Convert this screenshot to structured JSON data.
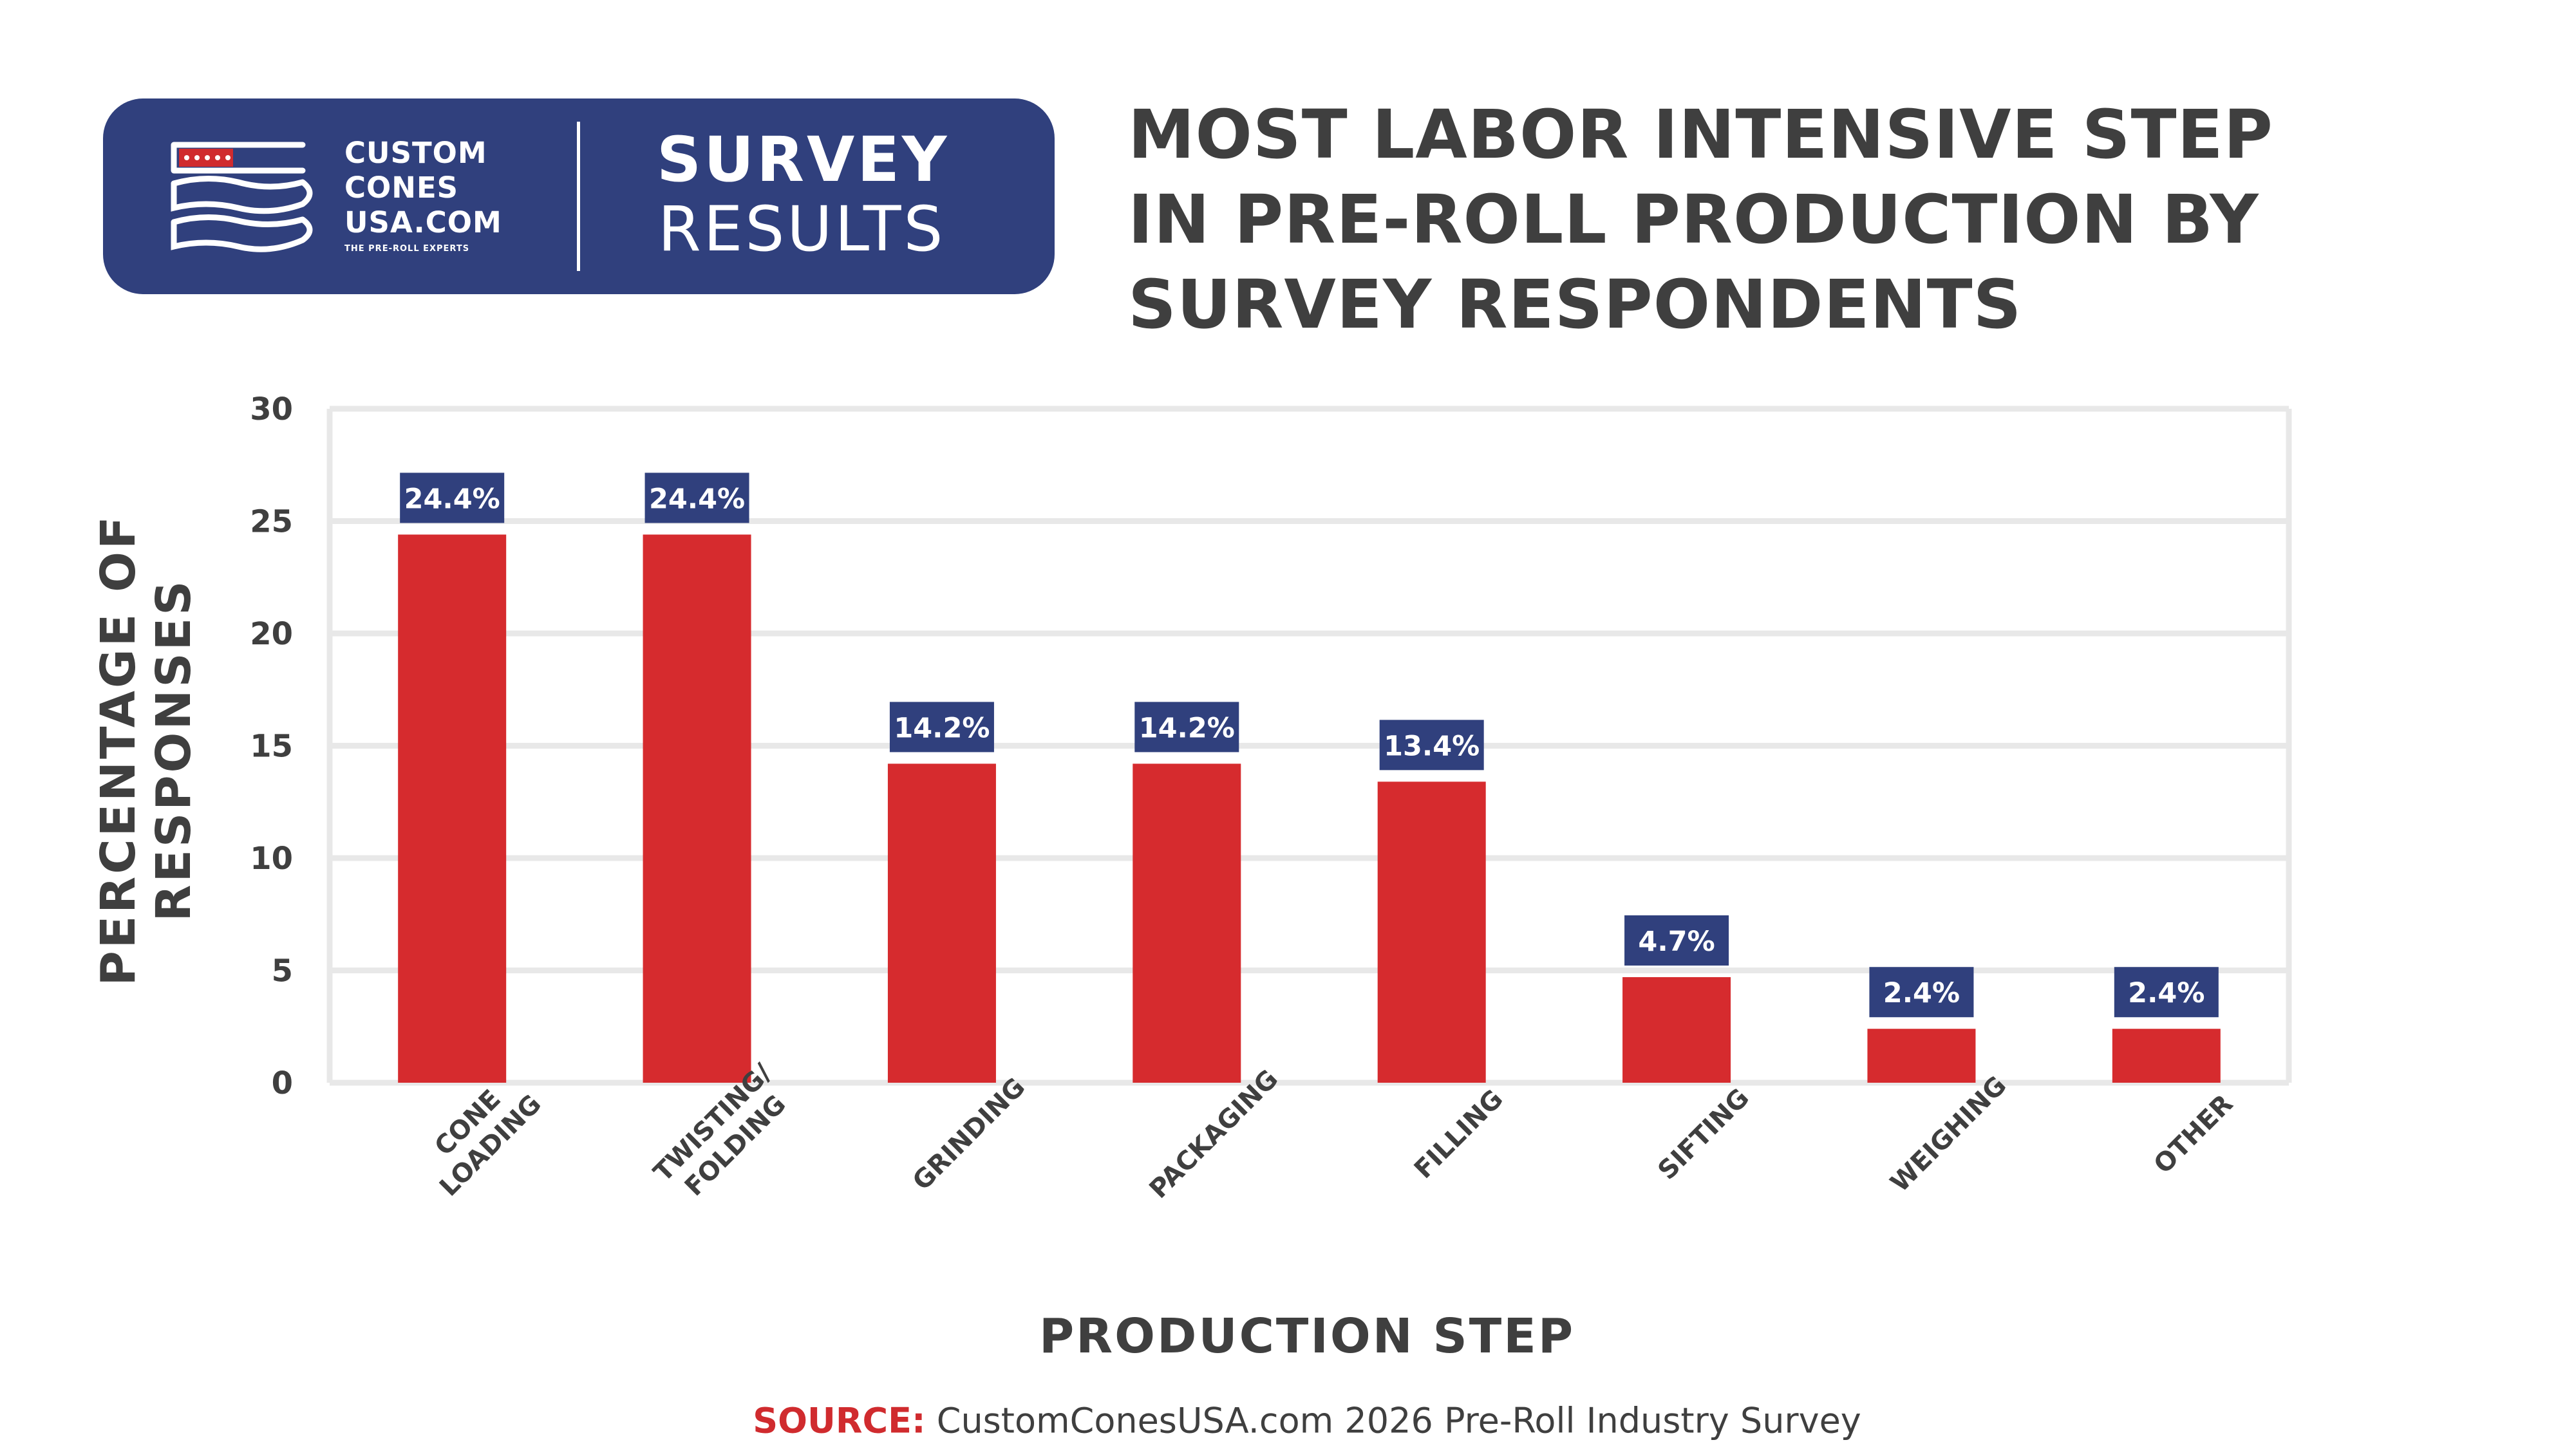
{
  "brand": {
    "line1": "CUSTOM",
    "line2": "CONES",
    "line3": "USA.COM",
    "tagline": "THE PRE-ROLL EXPERTS",
    "banner_heading": "SURVEY",
    "banner_subheading": "RESULTS"
  },
  "colors": {
    "navy": "#30407d",
    "bar_red": "#d62b2e",
    "text_dark": "#3f3f3f",
    "grid": "#e8e8e8"
  },
  "chart_data": {
    "type": "bar",
    "title": "MOST LABOR INTENSIVE  STEP\nIN PRE-ROLL PRODUCTION BY\nSURVEY RESPONDENTS",
    "xlabel": "PRODUCTION STEP",
    "ylabel": "PERCENTAGE OF\nRESPONSES",
    "ylim": [
      0,
      30
    ],
    "yticks": [
      "0",
      "5",
      "10",
      "15",
      "20",
      "25",
      "30"
    ],
    "categories": [
      [
        "CONE",
        "LOADING"
      ],
      [
        "TWISTING/",
        "FOLDING"
      ],
      [
        "GRINDING"
      ],
      [
        "PACKAGING"
      ],
      [
        "FILLING"
      ],
      [
        "SIFTING"
      ],
      [
        "WEIGHING"
      ],
      [
        "OTHER"
      ]
    ],
    "values": [
      24.4,
      24.4,
      14.2,
      14.2,
      13.4,
      4.7,
      2.4,
      2.4
    ],
    "data_labels": [
      "24.4%",
      "24.4%",
      "14.2%",
      "14.2%",
      "13.4%",
      "4.7%",
      "2.4%",
      "2.4%"
    ],
    "grid": true,
    "legend": "none"
  },
  "source": {
    "label": "SOURCE:",
    "text": " CustomConesUSA.com 2026 Pre-Roll Industry Survey"
  }
}
